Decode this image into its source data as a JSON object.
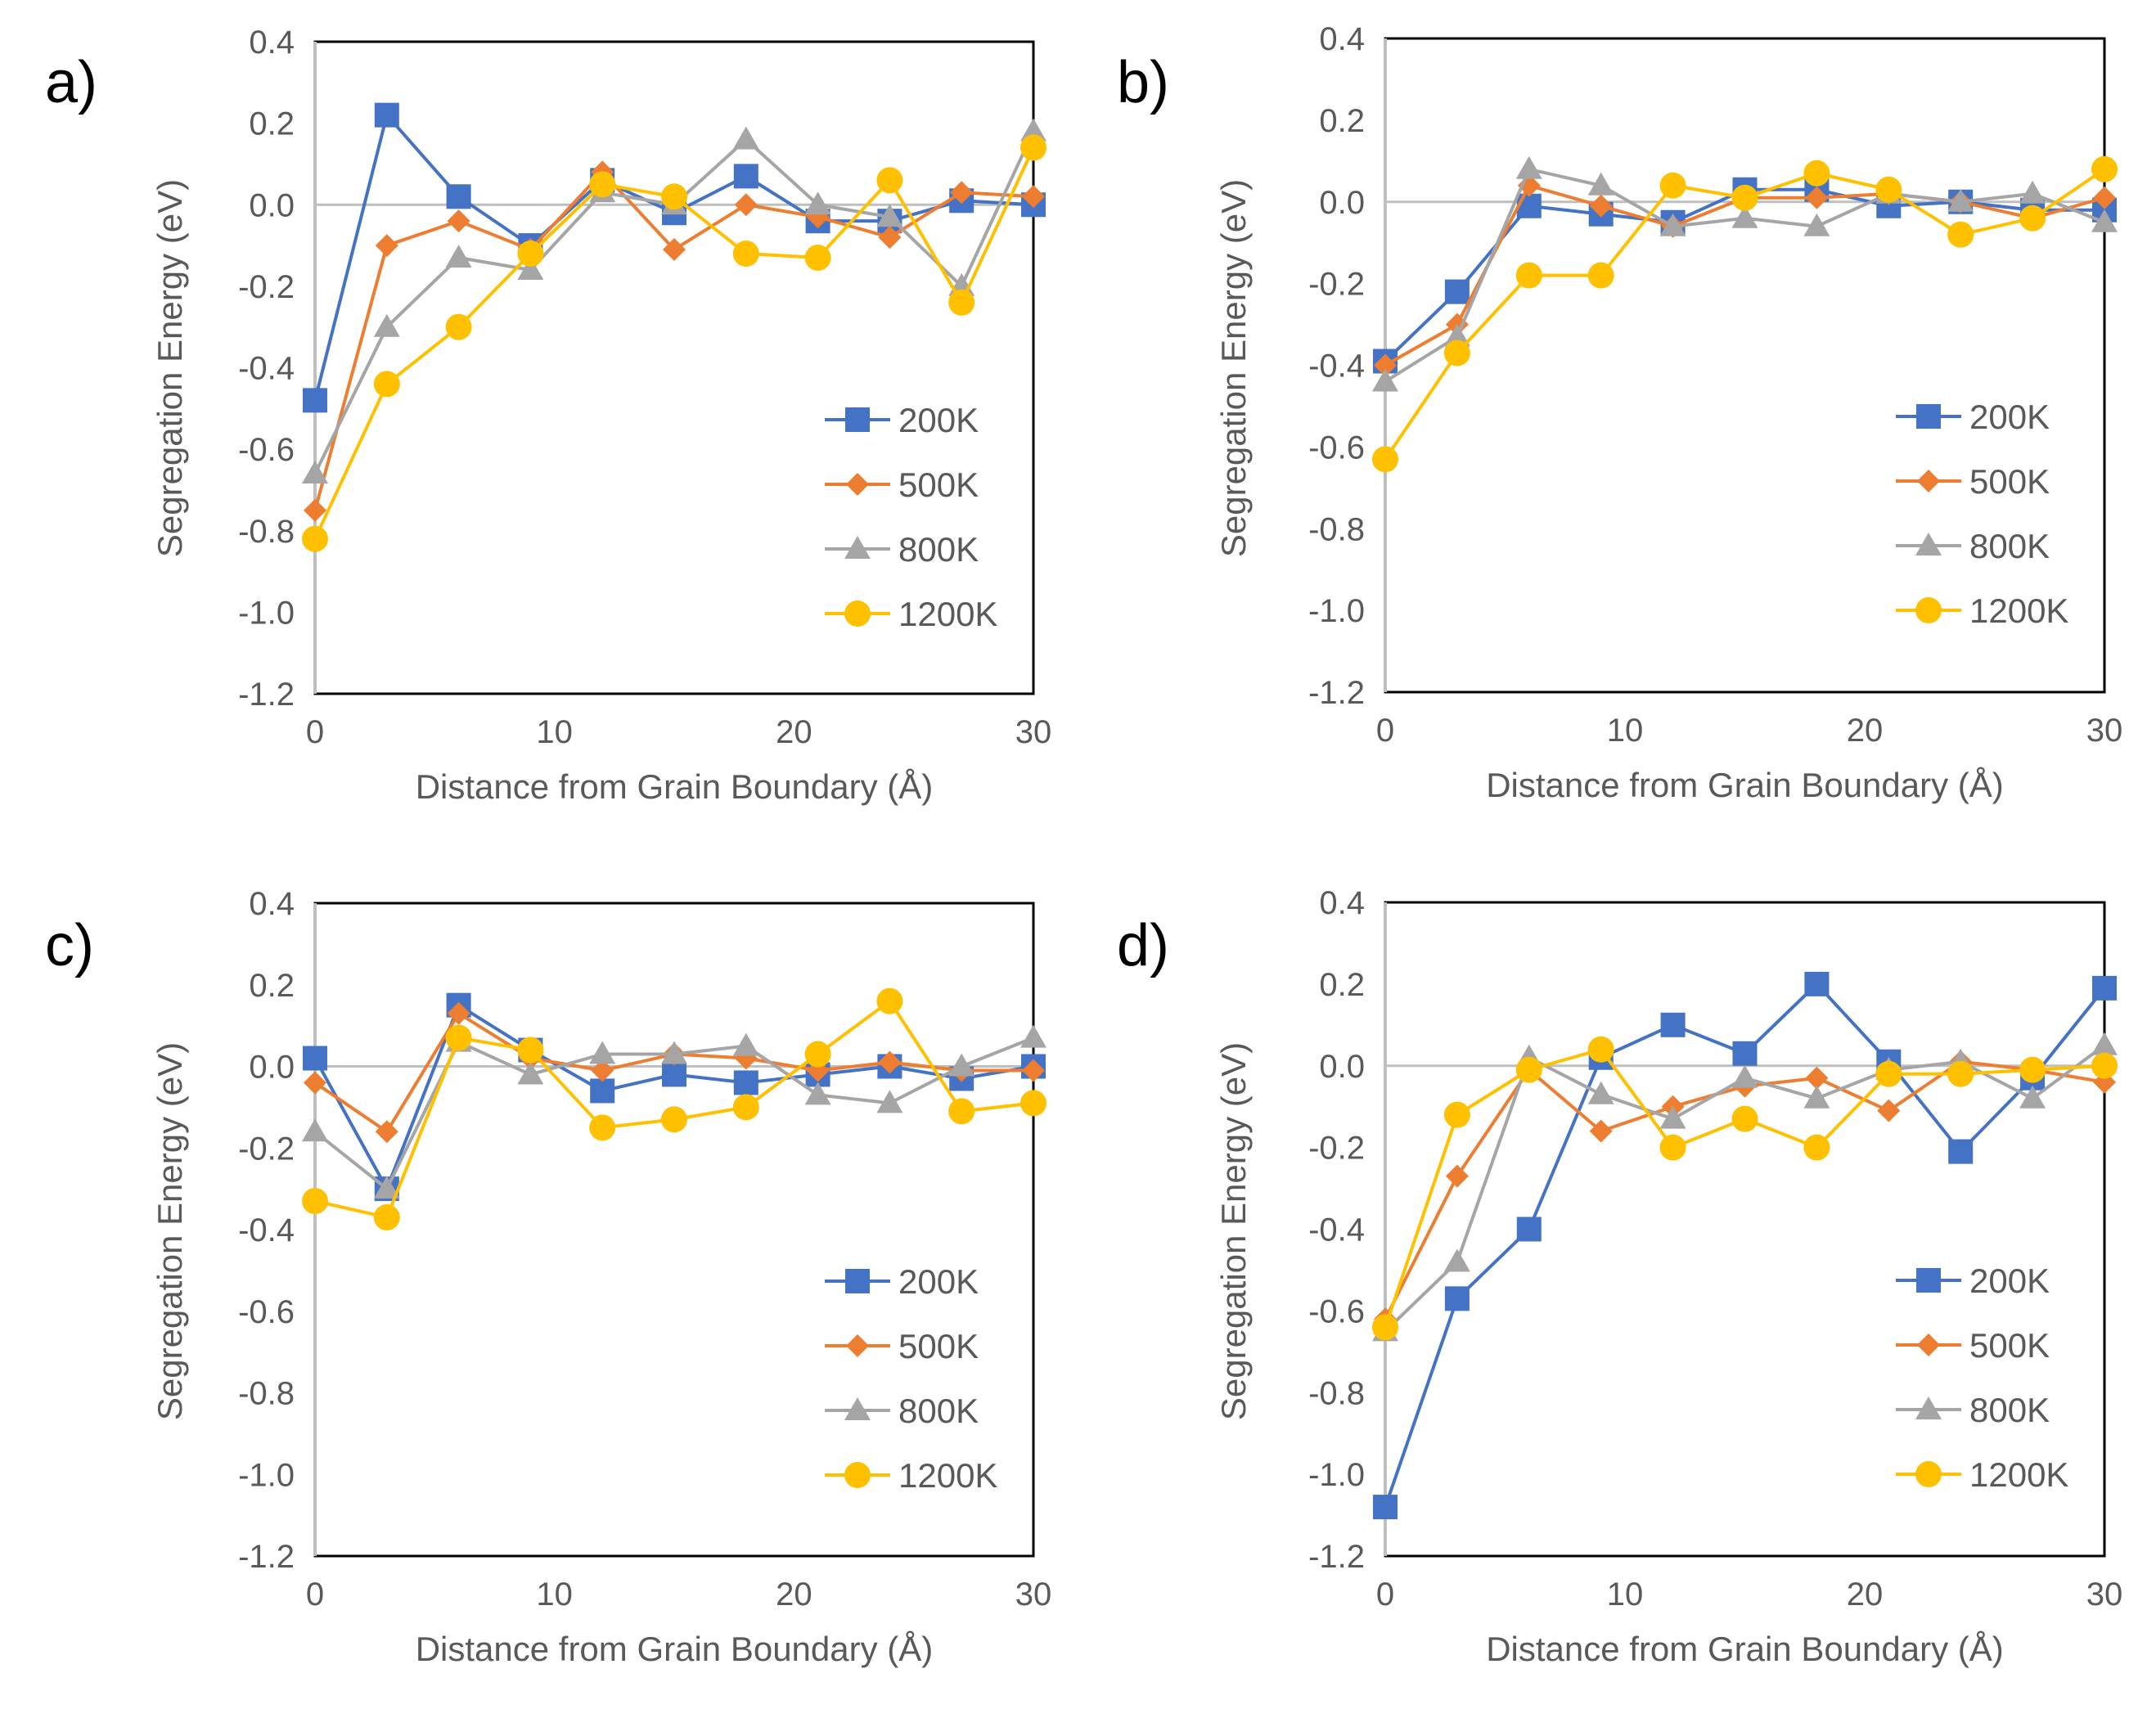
{
  "chart_data": [
    {
      "panel_label": "a)",
      "type": "line",
      "xlabel": "Distance from Grain Boundary (Å)",
      "ylabel": "Segregation Energy (eV)",
      "xlim": [
        0,
        30
      ],
      "ylim": [
        -1.2,
        0.4
      ],
      "xticks": [
        "0",
        "10",
        "20",
        "30"
      ],
      "yticks": [
        "0.4",
        "0.2",
        "0.0",
        "-0.2",
        "-0.4",
        "-0.6",
        "-0.8",
        "-1.0",
        "-1.2"
      ],
      "grid": "zero line only",
      "legend_position": "bottom-right",
      "x": [
        0,
        3,
        6,
        9,
        12,
        15,
        18,
        21,
        24,
        27,
        30
      ],
      "series": [
        {
          "name": "200K",
          "color": "#4472C4",
          "marker": "square",
          "values": [
            -0.48,
            0.22,
            0.02,
            -0.1,
            0.06,
            -0.02,
            0.07,
            -0.04,
            -0.04,
            0.01,
            0.0
          ]
        },
        {
          "name": "500K",
          "color": "#ED7D31",
          "marker": "diamond",
          "values": [
            -0.75,
            -0.1,
            -0.04,
            -0.11,
            0.08,
            -0.11,
            0.0,
            -0.03,
            -0.08,
            0.03,
            0.02
          ]
        },
        {
          "name": "800K",
          "color": "#A5A5A5",
          "marker": "triangle",
          "values": [
            -0.66,
            -0.3,
            -0.13,
            -0.16,
            0.03,
            0.0,
            0.16,
            0.0,
            -0.03,
            -0.2,
            0.18
          ]
        },
        {
          "name": "1200K",
          "color": "#FFC000",
          "marker": "circle",
          "values": [
            -0.82,
            -0.44,
            -0.3,
            -0.12,
            0.05,
            0.02,
            -0.12,
            -0.13,
            0.06,
            -0.24,
            0.14
          ]
        }
      ]
    },
    {
      "panel_label": "b)",
      "type": "line",
      "xlabel": "Distance from Grain Boundary (Å)",
      "ylabel": "Segregation Energy (eV)",
      "xlim": [
        0,
        30
      ],
      "ylim": [
        -1.2,
        0.4
      ],
      "xticks": [
        "0",
        "10",
        "20",
        "30"
      ],
      "yticks": [
        "0.4",
        "0.2",
        "0.0",
        "-0.2",
        "-0.4",
        "-0.6",
        "-0.8",
        "-1.0",
        "-1.2"
      ],
      "grid": "zero line only",
      "legend_position": "bottom-right",
      "x": [
        0,
        3,
        6,
        9,
        12,
        15,
        18,
        21,
        24,
        27,
        30
      ],
      "series": [
        {
          "name": "200K",
          "color": "#4472C4",
          "marker": "square",
          "values": [
            -0.39,
            -0.22,
            -0.01,
            -0.03,
            -0.05,
            0.03,
            0.03,
            -0.01,
            0.0,
            -0.02,
            -0.02
          ]
        },
        {
          "name": "500K",
          "color": "#ED7D31",
          "marker": "diamond",
          "values": [
            -0.4,
            -0.3,
            0.04,
            -0.01,
            -0.06,
            0.01,
            0.01,
            0.02,
            0.0,
            -0.04,
            0.01
          ]
        },
        {
          "name": "800K",
          "color": "#A5A5A5",
          "marker": "triangle",
          "values": [
            -0.44,
            -0.33,
            0.08,
            0.04,
            -0.06,
            -0.04,
            -0.06,
            0.02,
            0.0,
            0.02,
            -0.05
          ]
        },
        {
          "name": "1200K",
          "color": "#FFC000",
          "marker": "circle",
          "values": [
            -0.63,
            -0.37,
            -0.18,
            -0.18,
            0.04,
            0.01,
            0.07,
            0.03,
            -0.08,
            -0.04,
            0.08
          ]
        }
      ]
    },
    {
      "panel_label": "c)",
      "type": "line",
      "xlabel": "Distance from Grain Boundary (Å)",
      "ylabel": "Segregation Energy (eV)",
      "xlim": [
        0,
        30
      ],
      "ylim": [
        -1.2,
        0.4
      ],
      "xticks": [
        "0",
        "10",
        "20",
        "30"
      ],
      "yticks": [
        "0.4",
        "0.2",
        "0.0",
        "-0.2",
        "-0.4",
        "-0.6",
        "-0.8",
        "-1.0",
        "-1.2"
      ],
      "grid": "zero line only",
      "legend_position": "bottom-right",
      "x": [
        0,
        3,
        6,
        9,
        12,
        15,
        18,
        21,
        24,
        27,
        30
      ],
      "series": [
        {
          "name": "200K",
          "color": "#4472C4",
          "marker": "square",
          "values": [
            0.02,
            -0.3,
            0.15,
            0.04,
            -0.06,
            -0.02,
            -0.04,
            -0.02,
            0.0,
            -0.03,
            0.0
          ]
        },
        {
          "name": "500K",
          "color": "#ED7D31",
          "marker": "diamond",
          "values": [
            -0.04,
            -0.16,
            0.13,
            0.02,
            -0.01,
            0.03,
            0.02,
            -0.01,
            0.01,
            -0.01,
            -0.01
          ]
        },
        {
          "name": "800K",
          "color": "#A5A5A5",
          "marker": "triangle",
          "values": [
            -0.16,
            -0.3,
            0.06,
            -0.02,
            0.03,
            0.03,
            0.05,
            -0.07,
            -0.09,
            0.0,
            0.07
          ]
        },
        {
          "name": "1200K",
          "color": "#FFC000",
          "marker": "circle",
          "values": [
            -0.33,
            -0.37,
            0.07,
            0.04,
            -0.15,
            -0.13,
            -0.1,
            0.03,
            0.16,
            -0.11,
            -0.09
          ]
        }
      ]
    },
    {
      "panel_label": "d)",
      "type": "line",
      "xlabel": "Distance from Grain Boundary (Å)",
      "ylabel": "Segregation Energy (eV)",
      "xlim": [
        0,
        30
      ],
      "ylim": [
        -1.2,
        0.4
      ],
      "xticks": [
        "0",
        "10",
        "20",
        "30"
      ],
      "yticks": [
        "0.4",
        "0.2",
        "0.0",
        "-0.2",
        "-0.4",
        "-0.6",
        "-0.8",
        "-1.0",
        "-1.2"
      ],
      "grid": "zero line only",
      "legend_position": "bottom-right",
      "x": [
        0,
        3,
        6,
        9,
        12,
        15,
        18,
        21,
        24,
        27,
        30
      ],
      "series": [
        {
          "name": "200K",
          "color": "#4472C4",
          "marker": "square",
          "values": [
            -1.08,
            -0.57,
            -0.4,
            0.02,
            0.1,
            0.03,
            0.2,
            0.01,
            -0.21,
            -0.03,
            0.19
          ]
        },
        {
          "name": "500K",
          "color": "#ED7D31",
          "marker": "diamond",
          "values": [
            -0.62,
            -0.27,
            -0.01,
            -0.16,
            -0.1,
            -0.05,
            -0.03,
            -0.11,
            0.01,
            -0.01,
            -0.04
          ]
        },
        {
          "name": "800K",
          "color": "#A5A5A5",
          "marker": "triangle",
          "values": [
            -0.65,
            -0.48,
            0.02,
            -0.07,
            -0.13,
            -0.03,
            -0.08,
            -0.01,
            0.01,
            -0.08,
            0.05
          ]
        },
        {
          "name": "1200K",
          "color": "#FFC000",
          "marker": "circle",
          "values": [
            -0.64,
            -0.12,
            -0.01,
            0.04,
            -0.2,
            -0.13,
            -0.2,
            -0.02,
            -0.02,
            -0.01,
            0.0
          ]
        }
      ]
    }
  ]
}
